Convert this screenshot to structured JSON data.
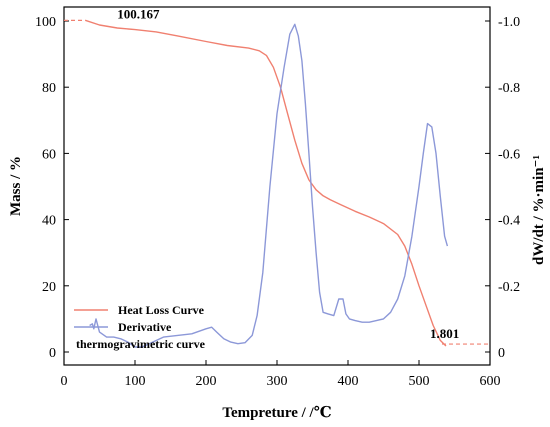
{
  "chart_data": {
    "type": "line",
    "xlabel": "Tempreture / /℃",
    "ylabel": "Mass / %",
    "y2label": "dW/dt / %·min⁻¹",
    "xlim": [
      0,
      600
    ],
    "ylim": [
      0,
      100
    ],
    "y2lim": [
      -1.0,
      0
    ],
    "xticks": [
      "0",
      "100",
      "200",
      "300",
      "400",
      "500",
      "600"
    ],
    "yticks": [
      "0",
      "20",
      "40",
      "60",
      "80",
      "100"
    ],
    "y2ticks": [
      "0",
      "-0.2",
      "-0.4",
      "-0.6",
      "-0.8",
      "-1.0"
    ],
    "grid": false,
    "legend_position": "bottom-left",
    "colors": {
      "mass": "#f08070",
      "derivative": "#8c98d8",
      "axis": "#000000"
    },
    "series": [
      {
        "name": "Heat Loss Curve",
        "axis": "left",
        "x": [
          30,
          50,
          75,
          100,
          130,
          160,
          200,
          230,
          260,
          275,
          285,
          295,
          305,
          315,
          325,
          335,
          345,
          355,
          365,
          375,
          390,
          410,
          430,
          450,
          470,
          480,
          490,
          500,
          510,
          520,
          530,
          538
        ],
        "y": [
          100.2,
          98.8,
          97.9,
          97.4,
          96.7,
          95.5,
          93.8,
          92.6,
          91.8,
          91.0,
          89.6,
          86.0,
          80.0,
          72.0,
          64.0,
          57.0,
          52.0,
          49.0,
          47.2,
          46.0,
          44.5,
          42.5,
          40.8,
          38.8,
          35.5,
          32.0,
          26.5,
          20.0,
          14.0,
          8.0,
          3.5,
          1.8
        ]
      },
      {
        "name": "Derivative",
        "axis": "right",
        "x": [
          36,
          40,
          42,
          45,
          50,
          60,
          70,
          80,
          90,
          100,
          110,
          120,
          140,
          160,
          180,
          200,
          208,
          215,
          225,
          235,
          245,
          255,
          265,
          272,
          280,
          290,
          300,
          310,
          318,
          325,
          330,
          335,
          340,
          345,
          350,
          355,
          360,
          365,
          372,
          380,
          387,
          393,
          397,
          402,
          410,
          420,
          430,
          440,
          450,
          460,
          470,
          480,
          490,
          500,
          506,
          512,
          518,
          524,
          530,
          536,
          540
        ],
        "y": [
          -0.08,
          -0.085,
          -0.07,
          -0.1,
          -0.06,
          -0.045,
          -0.045,
          -0.04,
          -0.03,
          -0.015,
          -0.015,
          -0.025,
          -0.045,
          -0.05,
          -0.055,
          -0.07,
          -0.075,
          -0.06,
          -0.04,
          -0.03,
          -0.025,
          -0.028,
          -0.05,
          -0.11,
          -0.24,
          -0.5,
          -0.72,
          -0.86,
          -0.96,
          -0.99,
          -0.955,
          -0.88,
          -0.75,
          -0.6,
          -0.44,
          -0.3,
          -0.18,
          -0.12,
          -0.115,
          -0.11,
          -0.16,
          -0.16,
          -0.115,
          -0.1,
          -0.095,
          -0.09,
          -0.09,
          -0.095,
          -0.1,
          -0.12,
          -0.16,
          -0.23,
          -0.35,
          -0.5,
          -0.6,
          -0.69,
          -0.68,
          -0.6,
          -0.47,
          -0.35,
          -0.32
        ]
      }
    ],
    "annotations": [
      {
        "text": "100.167",
        "x": 30,
        "y": 100.2,
        "axis": "left",
        "line_from": 0
      },
      {
        "text": "1.801",
        "x": 538,
        "y": 1.8,
        "axis": "left",
        "line_to": 600
      }
    ],
    "legend_extra": "thermogravimetric curve"
  }
}
